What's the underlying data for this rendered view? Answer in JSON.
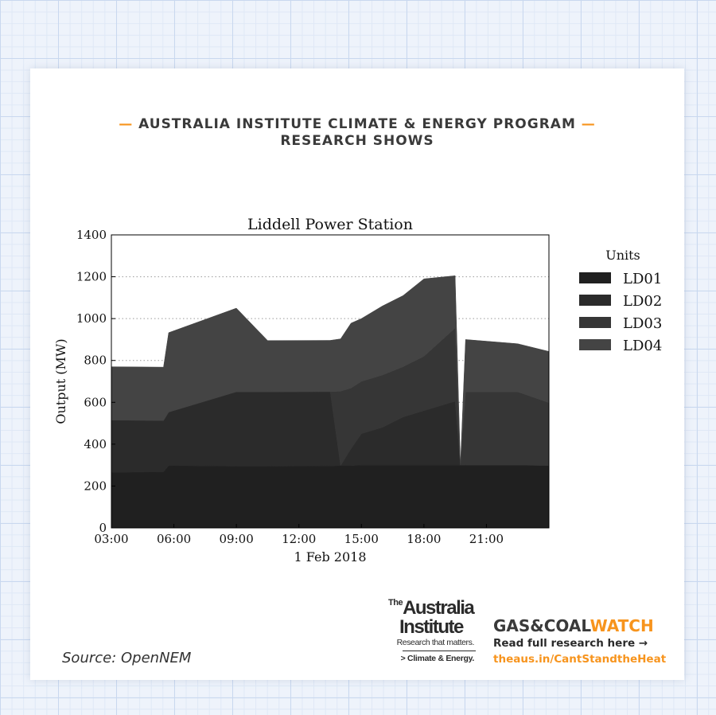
{
  "header": {
    "line1": "AUSTRALIA INSTITUTE CLIMATE & ENERGY PROGRAM",
    "line2": "RESEARCH SHOWS",
    "dash": "—"
  },
  "colors": {
    "accent_orange": "#f7941d",
    "grid_blue": "#c9d8ef",
    "LD01": "#202020",
    "LD02": "#2b2b2b",
    "LD03": "#363636",
    "LD04": "#444444"
  },
  "chart_data": {
    "type": "area",
    "stacked": true,
    "title": "Liddell Power Station",
    "xlabel": "1 Feb 2018",
    "ylabel": "Output (MW)",
    "ylim": [
      0,
      1400
    ],
    "yticks": [
      "0",
      "200",
      "400",
      "600",
      "800",
      "1000",
      "1200",
      "1400"
    ],
    "xticks": [
      "03:00",
      "06:00",
      "09:00",
      "12:00",
      "15:00",
      "18:00",
      "21:00"
    ],
    "xlim_hours": [
      3,
      24
    ],
    "grid": "horizontal dotted",
    "legend_title": "Units",
    "legend_position": "right",
    "x": [
      3.0,
      5.5,
      5.75,
      9.0,
      10.5,
      13.5,
      14.0,
      14.5,
      15.0,
      16.0,
      17.0,
      18.0,
      19.5,
      19.75,
      20.0,
      22.5,
      24.0
    ],
    "series": [
      {
        "name": "LD01",
        "values": [
          265,
          268,
          298,
          295,
          295,
          296,
          298,
          298,
          300,
          300,
          300,
          300,
          300,
          300,
          300,
          300,
          298
        ]
      },
      {
        "name": "LD02",
        "values": [
          250,
          245,
          255,
          355,
          355,
          355,
          0,
          80,
          150,
          180,
          230,
          260,
          305,
          0,
          0,
          0,
          0
        ]
      },
      {
        "name": "LD03",
        "values": [
          0,
          0,
          0,
          0,
          0,
          0,
          355,
          290,
          250,
          250,
          240,
          260,
          350,
          0,
          350,
          350,
          300
        ]
      },
      {
        "name": "LD04",
        "values": [
          255,
          255,
          380,
          400,
          245,
          245,
          250,
          310,
          300,
          330,
          340,
          370,
          250,
          0,
          250,
          230,
          245
        ]
      }
    ]
  },
  "source": "Source: OpenNEM",
  "logo_ai": {
    "the": "The",
    "line1": "Australia",
    "line2": "Institute",
    "tagline": "Research that matters.",
    "sub": "> Climate & Energy."
  },
  "gcw": {
    "brand_a": "GAS&COAL",
    "brand_b": "WATCH",
    "read": "Read full research here →",
    "url": "theaus.in/CantStandtheHeat"
  }
}
